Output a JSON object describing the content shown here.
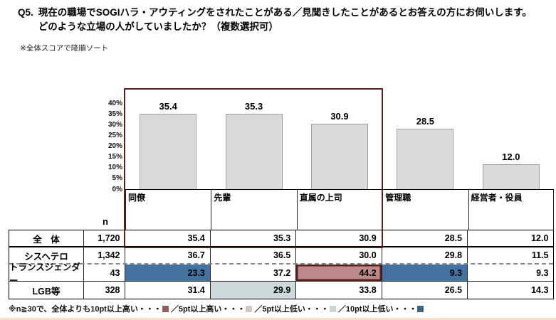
{
  "title": {
    "q": "Q5.",
    "line1": "現在の職場でSOGIハラ・アウティングをされたことがある／見聞きしたことがあるとお答えの方にお伺いします。",
    "line2": "どのような立場の人がしていましたか？（複数選択可）"
  },
  "sort_note": "※全体スコアで降順ソート",
  "accent_color": "#5A1E1E",
  "chart_data": {
    "type": "bar",
    "title": "どのような立場の人がしていましたか？（複数選択可）",
    "categories": [
      "同僚",
      "先輩",
      "直属の上司",
      "管理職",
      "経営者・役員"
    ],
    "values": [
      35.4,
      35.3,
      30.9,
      28.5,
      12.0
    ],
    "ylim": [
      0,
      40
    ],
    "ytick_step": 5,
    "ytick_labels": [
      "40%",
      "35%",
      "30%",
      "25%",
      "20%",
      "15%",
      "10%",
      "5%",
      "0%"
    ],
    "bar_color": "#D9D9D9",
    "bar_border_color": "#9E9E9E",
    "grid": "off",
    "highlight_box": {
      "columns": [
        "同僚",
        "先輩",
        "直属の上司"
      ],
      "color": "#5A1E1E"
    }
  },
  "table": {
    "n_header": "n",
    "columns": [
      "同僚",
      "先輩",
      "直属の上司",
      "管理職",
      "経営者・役員"
    ],
    "rows": [
      {
        "label": "全　体",
        "n": "1,720",
        "values": [
          "35.4",
          "35.3",
          "30.9",
          "28.5",
          "12.0"
        ],
        "highlights": []
      },
      {
        "label": "シスヘテロ",
        "n": "1,342",
        "values": [
          "36.7",
          "36.5",
          "30.0",
          "29.8",
          "11.5"
        ],
        "highlights": []
      },
      {
        "label": "トランスジェンダー",
        "n": "43",
        "values": [
          "23.3",
          "37.2",
          "44.2",
          "9.3",
          "9.3"
        ],
        "highlights": [
          {
            "col": 0,
            "type": "low10"
          },
          {
            "col": 2,
            "type": "high10",
            "ring": true
          },
          {
            "col": 3,
            "type": "low10"
          }
        ]
      },
      {
        "label": "LGB等",
        "n": "328",
        "values": [
          "31.4",
          "29.9",
          "33.8",
          "26.5",
          "14.3"
        ],
        "highlights": [
          {
            "col": 1,
            "type": "low5"
          }
        ]
      }
    ],
    "highlight_colors": {
      "high10": "#BC8A8A",
      "high5": "#D6C6C2",
      "low5": "#CDD9DA",
      "low10": "#4573A1"
    }
  },
  "footnote": {
    "items": [
      {
        "label": "※n≧30で、全体よりも10pt以上高い・・・",
        "color": "#8E6060"
      },
      {
        "label": "／5pt以上高い・・・",
        "color": "#D6C6C2"
      },
      {
        "label": "／5pt以上低い・・・",
        "color": "#C6D5D6"
      },
      {
        "label": "／10pt以上低い・・・",
        "color": "#3E6482"
      }
    ]
  }
}
